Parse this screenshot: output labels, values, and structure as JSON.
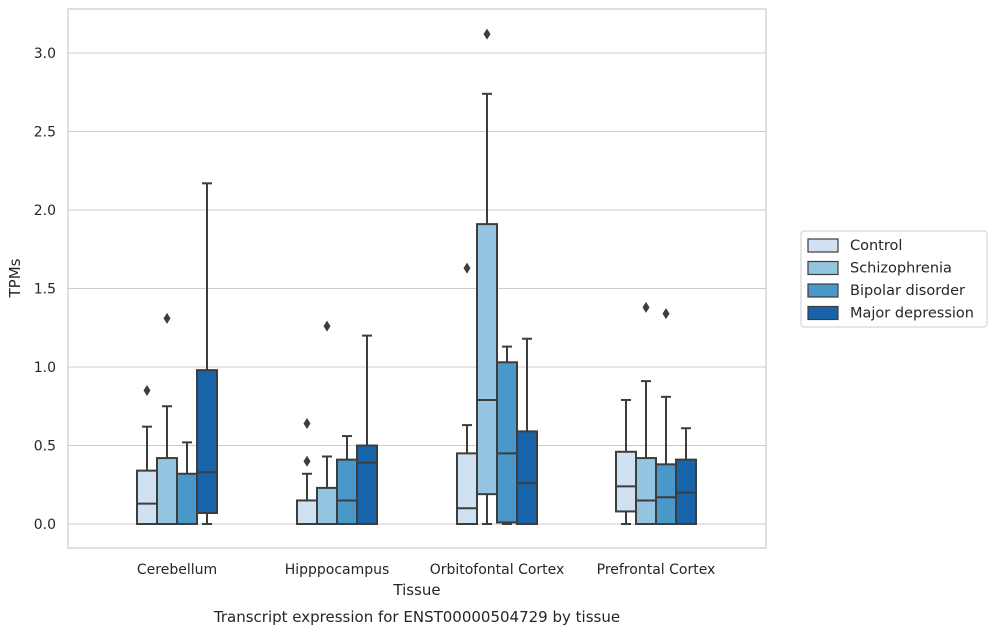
{
  "chart_data": {
    "type": "box",
    "title": "",
    "caption": "Transcript expression for ENST00000504729 by tissue",
    "xlabel": "Tissue",
    "ylabel": "TPMs",
    "ylim": [
      -0.15,
      3.28
    ],
    "yticks": [
      "0.0",
      "0.5",
      "1.0",
      "1.5",
      "2.0",
      "2.5",
      "3.0"
    ],
    "grid": "horizontal",
    "legend_placement": "right",
    "categories": [
      "Cerebellum",
      "Hipppocampus",
      "Orbitofontal Cortex",
      "Prefrontal Cortex"
    ],
    "series": [
      {
        "name": "Control",
        "color": "#d0e1f2",
        "boxes": [
          {
            "q1": 0.0,
            "median": 0.13,
            "q3": 0.34,
            "whisker_low": 0.0,
            "whisker_high": 0.62,
            "outliers": [
              0.85
            ]
          },
          {
            "q1": 0.0,
            "median": 0.0,
            "q3": 0.15,
            "whisker_low": 0.0,
            "whisker_high": 0.32,
            "outliers": [
              0.4,
              0.64
            ]
          },
          {
            "q1": 0.0,
            "median": 0.1,
            "q3": 0.45,
            "whisker_low": 0.0,
            "whisker_high": 0.63,
            "outliers": [
              1.63
            ]
          },
          {
            "q1": 0.08,
            "median": 0.24,
            "q3": 0.46,
            "whisker_low": 0.0,
            "whisker_high": 0.79,
            "outliers": []
          }
        ]
      },
      {
        "name": "Schizophrenia",
        "color": "#94c4df",
        "boxes": [
          {
            "q1": 0.0,
            "median": 0.0,
            "q3": 0.42,
            "whisker_low": 0.0,
            "whisker_high": 0.75,
            "outliers": [
              1.31
            ]
          },
          {
            "q1": 0.0,
            "median": 0.0,
            "q3": 0.23,
            "whisker_low": 0.0,
            "whisker_high": 0.43,
            "outliers": [
              1.26
            ]
          },
          {
            "q1": 0.19,
            "median": 0.79,
            "q3": 1.91,
            "whisker_low": 0.0,
            "whisker_high": 2.74,
            "outliers": [
              3.12
            ]
          },
          {
            "q1": 0.0,
            "median": 0.15,
            "q3": 0.42,
            "whisker_low": 0.0,
            "whisker_high": 0.91,
            "outliers": [
              1.38
            ]
          }
        ]
      },
      {
        "name": "Bipolar disorder",
        "color": "#4a98c9",
        "boxes": [
          {
            "q1": 0.0,
            "median": 0.0,
            "q3": 0.32,
            "whisker_low": 0.0,
            "whisker_high": 0.52,
            "outliers": []
          },
          {
            "q1": 0.0,
            "median": 0.15,
            "q3": 0.41,
            "whisker_low": 0.0,
            "whisker_high": 0.56,
            "outliers": []
          },
          {
            "q1": 0.01,
            "median": 0.45,
            "q3": 1.03,
            "whisker_low": 0.0,
            "whisker_high": 1.13,
            "outliers": []
          },
          {
            "q1": 0.0,
            "median": 0.17,
            "q3": 0.38,
            "whisker_low": 0.0,
            "whisker_high": 0.81,
            "outliers": [
              1.34
            ]
          }
        ]
      },
      {
        "name": "Major depression",
        "color": "#1764ab",
        "boxes": [
          {
            "q1": 0.07,
            "median": 0.33,
            "q3": 0.98,
            "whisker_low": 0.0,
            "whisker_high": 2.17,
            "outliers": []
          },
          {
            "q1": 0.0,
            "median": 0.39,
            "q3": 0.5,
            "whisker_low": 0.0,
            "whisker_high": 1.2,
            "outliers": []
          },
          {
            "q1": 0.0,
            "median": 0.26,
            "q3": 0.59,
            "whisker_low": 0.0,
            "whisker_high": 1.18,
            "outliers": []
          },
          {
            "q1": 0.0,
            "median": 0.2,
            "q3": 0.41,
            "whisker_low": 0.0,
            "whisker_high": 0.61,
            "outliers": []
          }
        ]
      }
    ]
  }
}
